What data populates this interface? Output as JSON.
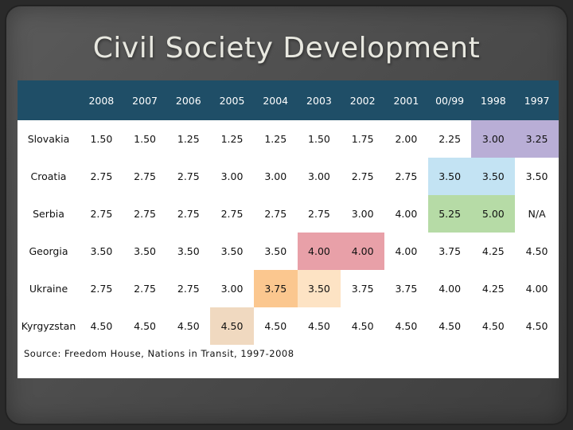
{
  "slide": {
    "title": "Civil Society Development",
    "source": "Source: Freedom House, Nations in Transit, 1997-2008"
  },
  "table": {
    "corner": "",
    "columns": [
      "2008",
      "2007",
      "2006",
      "2005",
      "2004",
      "2003",
      "2002",
      "2001",
      "00/99",
      "1998",
      "1997"
    ],
    "rows": [
      {
        "country": "Slovakia",
        "values": [
          "1.50",
          "1.50",
          "1.25",
          "1.25",
          "1.25",
          "1.50",
          "1.75",
          "2.00",
          "2.25",
          "3.00",
          "3.25"
        ]
      },
      {
        "country": "Croatia",
        "values": [
          "2.75",
          "2.75",
          "2.75",
          "3.00",
          "3.00",
          "3.00",
          "2.75",
          "2.75",
          "3.50",
          "3.50",
          "3.50"
        ]
      },
      {
        "country": "Serbia",
        "values": [
          "2.75",
          "2.75",
          "2.75",
          "2.75",
          "2.75",
          "2.75",
          "3.00",
          "4.00",
          "5.25",
          "5.00",
          "N/A"
        ]
      },
      {
        "country": "Georgia",
        "values": [
          "3.50",
          "3.50",
          "3.50",
          "3.50",
          "3.50",
          "4.00",
          "4.00",
          "4.00",
          "3.75",
          "4.25",
          "4.50"
        ]
      },
      {
        "country": "Ukraine",
        "values": [
          "2.75",
          "2.75",
          "2.75",
          "3.00",
          "3.75",
          "3.50",
          "3.75",
          "3.75",
          "4.00",
          "4.25",
          "4.00"
        ]
      },
      {
        "country": "Kyrgyzstan",
        "values": [
          "4.50",
          "4.50",
          "4.50",
          "4.50",
          "4.50",
          "4.50",
          "4.50",
          "4.50",
          "4.50",
          "4.50",
          "4.50"
        ]
      }
    ],
    "highlight_colors": {
      "purple": "#b9aed6",
      "light_blue": "#c3e3f3",
      "light_green": "#b6dba6",
      "pink": "#e8a0a8",
      "orange": "#fbc78f",
      "peach": "#fde3c4",
      "tan": "#f0d9c0",
      "header_bg": "#1f4e67"
    },
    "highlights": [
      {
        "row": 0,
        "cols": [
          9,
          10
        ],
        "color": "purple"
      },
      {
        "row": 1,
        "cols": [
          8,
          9
        ],
        "color": "light_blue"
      },
      {
        "row": 2,
        "cols": [
          8,
          9
        ],
        "color": "light_green"
      },
      {
        "row": 3,
        "cols": [
          5,
          6
        ],
        "color": "pink"
      },
      {
        "row": 4,
        "cols": [
          4
        ],
        "color": "orange"
      },
      {
        "row": 4,
        "cols": [
          5
        ],
        "color": "peach"
      },
      {
        "row": 5,
        "cols": [
          3
        ],
        "color": "tan"
      }
    ]
  }
}
